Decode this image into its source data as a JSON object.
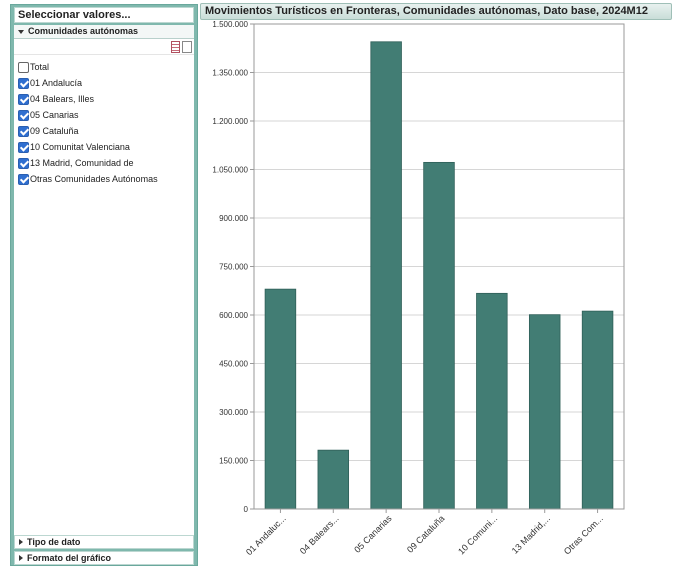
{
  "left_panel": {
    "title": "Seleccionar valores...",
    "section_label": "Comunidades autónomas",
    "items": [
      {
        "label": "Total",
        "checked": false
      },
      {
        "label": "01 Andalucía",
        "checked": true
      },
      {
        "label": "04 Balears, Illes",
        "checked": true
      },
      {
        "label": "05 Canarias",
        "checked": true
      },
      {
        "label": "09 Cataluña",
        "checked": true
      },
      {
        "label": "10 Comunitat Valenciana",
        "checked": true
      },
      {
        "label": "13 Madrid, Comunidad de",
        "checked": true
      },
      {
        "label": "Otras Comunidades Autónomas",
        "checked": true
      }
    ],
    "collapsed_sections": [
      {
        "label": "Tipo de dato"
      },
      {
        "label": "Formato del gráfico"
      }
    ]
  },
  "chart_title": "Movimientos Turísticos en Fronteras, Comunidades autónomas, Dato base, 2024M12",
  "colors": {
    "bar": "#427d74",
    "panel": "#7fb8ad"
  },
  "chart_data": {
    "type": "bar",
    "title": "Movimientos Turísticos en Fronteras, Comunidades autónomas, Dato base, 2024M12",
    "categories": [
      "01 Andaluc...",
      "04 Balears...",
      "05 Canarias",
      "09 Cataluña",
      "10 Comuni...",
      "13 Madrid,...",
      "Otras Com..."
    ],
    "values": [
      680000,
      182000,
      1445000,
      1072000,
      667000,
      601000,
      612000
    ],
    "ylim": [
      0,
      1500000
    ],
    "yticks": [
      0,
      150000,
      300000,
      450000,
      600000,
      750000,
      900000,
      1050000,
      1200000,
      1350000,
      1500000
    ],
    "ytick_labels": [
      "0",
      "150.000",
      "300.000",
      "450.000",
      "600.000",
      "750.000",
      "900.000",
      "1.050.000",
      "1.200.000",
      "1.350.000",
      "1.500.000"
    ],
    "grid": true,
    "xlabel": "",
    "ylabel": ""
  }
}
